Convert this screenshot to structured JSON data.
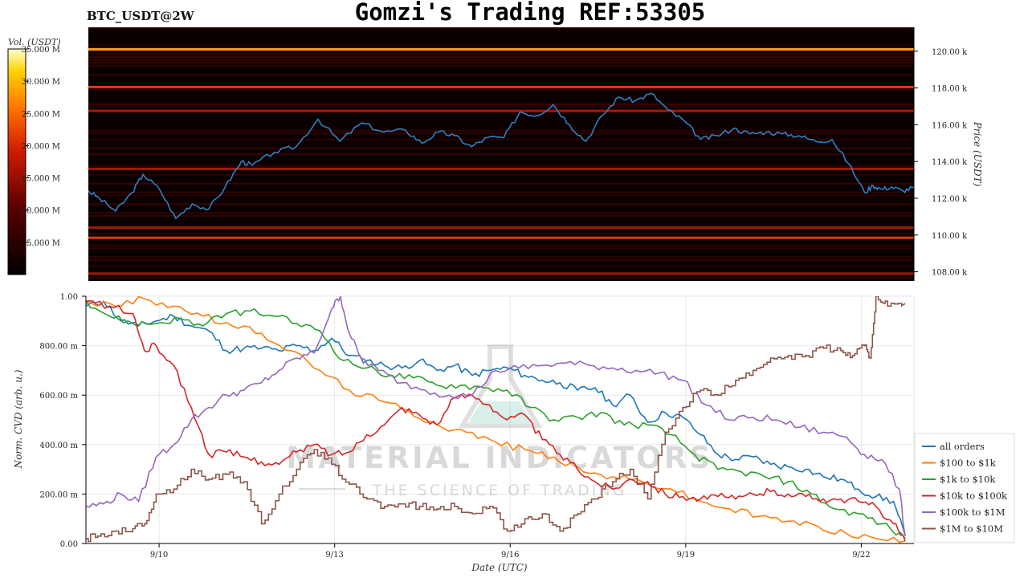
{
  "header": {
    "symbol": "BTC_USDT@2W",
    "title": "Gomzi's Trading REF:53305"
  },
  "watermark": {
    "main": "MATERIAL INDICATORS",
    "sub": "THE SCIENCE OF TRADING"
  },
  "colors": {
    "price_line": "#2f7fc1",
    "heatmap_bg": "#0a0000",
    "series": [
      "#1f77b4",
      "#ff7f0e",
      "#2ca02c",
      "#d62728",
      "#9467bd",
      "#8c564b"
    ]
  },
  "chart_data": [
    {
      "type": "heatmap",
      "colorbar": {
        "label": "Vol. (USDT)",
        "ticks": [
          "5.000 M",
          "10.000 M",
          "15.000 M",
          "20.000 M",
          "25.000 M",
          "30.000 M",
          "35.000 M"
        ],
        "range": [
          0,
          35
        ]
      },
      "ylabel": "Price (USDT)",
      "ylim": [
        107500,
        121300
      ],
      "yticks": [
        "108.00 k",
        "110.00 k",
        "112.00 k",
        "114.00 k",
        "116.00 k",
        "118.00 k",
        "120.00 k"
      ],
      "grid": false,
      "levels": [
        {
          "price": 120100,
          "intensity": 0.95
        },
        {
          "price": 118050,
          "intensity": 0.75
        },
        {
          "price": 109850,
          "intensity": 0.7
        },
        {
          "price": 116750,
          "intensity": 0.5
        },
        {
          "price": 107900,
          "intensity": 0.5
        },
        {
          "price": 113600,
          "intensity": 0.35
        },
        {
          "price": 110400,
          "intensity": 0.35
        }
      ],
      "price": {
        "name": "Price",
        "t": [
          0,
          0.2,
          0.5,
          0.8,
          1.0,
          1.3,
          1.6,
          1.9,
          2.2,
          2.5,
          2.8,
          3.0,
          3.4,
          3.8,
          4.2,
          4.6,
          5.0,
          5.4,
          5.8,
          6.1,
          6.4,
          6.7,
          7.0,
          7.3,
          7.6,
          7.9,
          8.2,
          8.5,
          8.8,
          9.1,
          9.4,
          9.7,
          10.0,
          10.3,
          10.6,
          10.9,
          11.2,
          11.5,
          11.8,
          12.1,
          12.4,
          12.7,
          13.0,
          13.3,
          13.6,
          13.9,
          14.2,
          14.35,
          14.5,
          14.7,
          14.9,
          15.1
        ],
        "values": [
          112400,
          112000,
          111300,
          112300,
          113300,
          112500,
          110900,
          111700,
          111400,
          112600,
          114000,
          113800,
          114500,
          114800,
          116300,
          115100,
          116100,
          115600,
          115700,
          115000,
          115600,
          115400,
          114800,
          115300,
          115300,
          116700,
          116500,
          117100,
          116000,
          115100,
          116500,
          117500,
          117300,
          117700,
          116800,
          116200,
          115200,
          115400,
          115800,
          115500,
          115600,
          115500,
          115400,
          115100,
          115200,
          113900,
          112300,
          112700,
          112500,
          112600,
          112400,
          112600
        ]
      }
    },
    {
      "type": "line",
      "xlabel": "Date (UTC)",
      "ylabel": "Norm. CVD (arb. u.)",
      "ylim": [
        0,
        1
      ],
      "yticks": [
        "0.00",
        "200.00 m",
        "400.00 m",
        "600.00 m",
        "800.00 m",
        "1.00"
      ],
      "x_tick_labels": [
        "9/10",
        "9/13",
        "9/16",
        "9/19",
        "9/22"
      ],
      "x_tick_positions": [
        1.25,
        4.25,
        7.25,
        10.25,
        13.25
      ],
      "xlim": [
        0,
        14.15
      ],
      "grid": true,
      "legend": "right",
      "series": [
        {
          "name": "all orders",
          "t": [
            0,
            0.3,
            0.6,
            0.9,
            1.2,
            1.5,
            1.8,
            2.1,
            2.4,
            2.7,
            3.0,
            3.3,
            3.6,
            3.9,
            4.2,
            4.5,
            4.8,
            5.1,
            5.4,
            5.7,
            6.0,
            6.3,
            6.6,
            6.9,
            7.2,
            7.5,
            7.8,
            8.1,
            8.4,
            8.7,
            9.0,
            9.3,
            9.6,
            9.9,
            10.2,
            10.5,
            10.8,
            11.1,
            11.4,
            11.7,
            12.0,
            12.3,
            12.6,
            12.9,
            13.2,
            13.5,
            13.8,
            14.0
          ],
          "values": [
            0.96,
            0.98,
            0.9,
            0.88,
            0.9,
            0.92,
            0.88,
            0.86,
            0.78,
            0.79,
            0.79,
            0.78,
            0.8,
            0.78,
            0.83,
            0.76,
            0.74,
            0.72,
            0.71,
            0.74,
            0.7,
            0.72,
            0.68,
            0.7,
            0.71,
            0.68,
            0.66,
            0.65,
            0.62,
            0.63,
            0.56,
            0.6,
            0.49,
            0.53,
            0.51,
            0.44,
            0.36,
            0.34,
            0.35,
            0.32,
            0.31,
            0.3,
            0.27,
            0.26,
            0.22,
            0.19,
            0.17,
            0.03
          ]
        },
        {
          "name": "$100 to $1k",
          "t": [
            0,
            0.5,
            1.0,
            1.5,
            2.0,
            2.5,
            3.0,
            3.5,
            4.0,
            4.5,
            5.0,
            5.5,
            6.0,
            6.5,
            7.0,
            7.5,
            8.0,
            8.5,
            9.0,
            9.5,
            10.0,
            10.5,
            11.0,
            11.5,
            12.0,
            12.5,
            13.0,
            13.5,
            14.0
          ],
          "values": [
            0.98,
            0.96,
            0.99,
            0.96,
            0.92,
            0.88,
            0.85,
            0.78,
            0.7,
            0.62,
            0.58,
            0.54,
            0.48,
            0.45,
            0.41,
            0.38,
            0.35,
            0.29,
            0.27,
            0.25,
            0.22,
            0.17,
            0.14,
            0.11,
            0.09,
            0.07,
            0.04,
            0.02,
            0.01
          ]
        },
        {
          "name": "$1k to $10k",
          "t": [
            0,
            0.4,
            0.8,
            1.2,
            1.6,
            2.0,
            2.4,
            2.8,
            3.2,
            3.6,
            4.0,
            4.4,
            4.8,
            5.2,
            5.6,
            6.0,
            6.4,
            6.8,
            7.2,
            7.6,
            8.0,
            8.4,
            8.8,
            9.2,
            9.6,
            10.0,
            10.4,
            10.8,
            11.2,
            11.6,
            12.0,
            12.4,
            12.8,
            13.2,
            13.6,
            14.0
          ],
          "values": [
            0.98,
            0.92,
            0.89,
            0.89,
            0.91,
            0.88,
            0.93,
            0.94,
            0.92,
            0.89,
            0.86,
            0.74,
            0.71,
            0.68,
            0.67,
            0.64,
            0.64,
            0.63,
            0.62,
            0.55,
            0.5,
            0.51,
            0.53,
            0.48,
            0.48,
            0.44,
            0.36,
            0.3,
            0.29,
            0.27,
            0.25,
            0.2,
            0.14,
            0.12,
            0.08,
            0.02
          ]
        },
        {
          "name": "$10k to $100k",
          "t": [
            0,
            0.4,
            0.8,
            1.0,
            1.2,
            1.5,
            1.8,
            2.1,
            2.4,
            2.7,
            3.0,
            3.3,
            3.6,
            3.9,
            4.2,
            4.5,
            4.8,
            5.1,
            5.4,
            5.7,
            6.0,
            6.3,
            6.6,
            6.9,
            7.2,
            7.5,
            7.8,
            8.1,
            8.4,
            8.7,
            9.0,
            9.3,
            9.6,
            9.9,
            10.2,
            10.5,
            10.8,
            11.1,
            11.4,
            11.7,
            12.0,
            12.3,
            12.6,
            12.9,
            13.2,
            13.5,
            13.8,
            14.0
          ],
          "values": [
            0.98,
            0.96,
            0.93,
            0.78,
            0.8,
            0.72,
            0.55,
            0.36,
            0.37,
            0.35,
            0.33,
            0.32,
            0.37,
            0.4,
            0.36,
            0.37,
            0.44,
            0.48,
            0.55,
            0.52,
            0.48,
            0.59,
            0.6,
            0.56,
            0.5,
            0.52,
            0.42,
            0.36,
            0.3,
            0.25,
            0.22,
            0.26,
            0.25,
            0.2,
            0.19,
            0.18,
            0.19,
            0.18,
            0.2,
            0.21,
            0.2,
            0.19,
            0.18,
            0.18,
            0.17,
            0.15,
            0.08,
            0.01
          ]
        },
        {
          "name": "$100k to $1M",
          "t": [
            0,
            0.3,
            0.6,
            0.9,
            1.2,
            1.5,
            1.8,
            2.1,
            2.4,
            2.7,
            3.0,
            3.3,
            3.6,
            3.9,
            4.2,
            4.35,
            4.5,
            4.7,
            5.0,
            5.4,
            5.8,
            6.2,
            6.6,
            7.0,
            7.4,
            7.8,
            8.2,
            8.6,
            9.0,
            9.4,
            9.8,
            10.2,
            10.6,
            11.0,
            11.4,
            11.8,
            12.2,
            12.6,
            13.0,
            13.3,
            13.6,
            13.9,
            14.0
          ],
          "values": [
            0.15,
            0.16,
            0.2,
            0.17,
            0.35,
            0.4,
            0.5,
            0.55,
            0.6,
            0.62,
            0.65,
            0.7,
            0.75,
            0.77,
            0.95,
            1.0,
            0.85,
            0.75,
            0.7,
            0.65,
            0.62,
            0.6,
            0.6,
            0.7,
            0.71,
            0.72,
            0.73,
            0.72,
            0.71,
            0.7,
            0.69,
            0.66,
            0.56,
            0.5,
            0.51,
            0.5,
            0.47,
            0.45,
            0.43,
            0.36,
            0.34,
            0.22,
            0.03
          ]
        },
        {
          "name": "$1M to $10M",
          "t": [
            0,
            0.2,
            0.5,
            0.8,
            1.0,
            1.2,
            1.5,
            1.8,
            2.1,
            2.4,
            2.7,
            3.0,
            3.3,
            3.6,
            3.9,
            4.2,
            4.5,
            4.8,
            5.1,
            5.4,
            5.7,
            6.0,
            6.3,
            6.6,
            6.9,
            7.2,
            7.5,
            7.8,
            8.1,
            8.4,
            8.7,
            9.0,
            9.3,
            9.6,
            9.9,
            10.2,
            10.5,
            10.8,
            11.1,
            11.4,
            11.7,
            12.0,
            12.3,
            12.6,
            12.9,
            13.1,
            13.3,
            13.4,
            13.5,
            13.7,
            14.0
          ],
          "values": [
            0.02,
            0.03,
            0.05,
            0.06,
            0.08,
            0.2,
            0.22,
            0.3,
            0.26,
            0.28,
            0.25,
            0.08,
            0.2,
            0.3,
            0.38,
            0.32,
            0.24,
            0.18,
            0.15,
            0.16,
            0.15,
            0.14,
            0.15,
            0.12,
            0.15,
            0.05,
            0.1,
            0.12,
            0.05,
            0.12,
            0.18,
            0.25,
            0.3,
            0.18,
            0.45,
            0.55,
            0.62,
            0.6,
            0.66,
            0.7,
            0.75,
            0.76,
            0.76,
            0.79,
            0.78,
            0.76,
            0.8,
            0.75,
            1.0,
            0.96,
            0.97
          ]
        }
      ]
    }
  ]
}
